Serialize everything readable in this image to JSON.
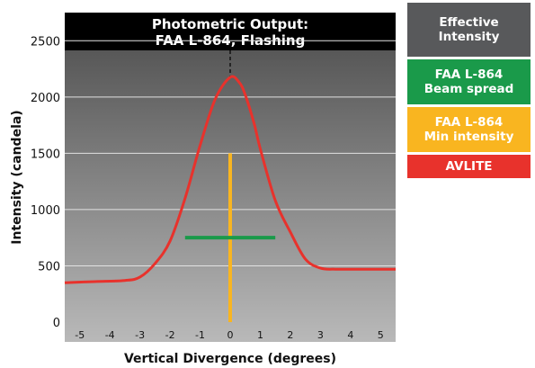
{
  "chart_data": {
    "type": "line",
    "title": "Photometric Output:\nFAA L-864, Flashing",
    "xlabel": "Vertical Divergence (degrees)",
    "ylabel": "Intensity (candela)",
    "xlim": [
      -5.5,
      5.5
    ],
    "ylim": [
      0,
      2750
    ],
    "x_ticks": [
      -5,
      -4,
      -3,
      -2,
      -1,
      0,
      1,
      2,
      3,
      4,
      5
    ],
    "y_ticks": [
      0,
      500,
      1000,
      1500,
      2000,
      2500
    ],
    "grid": true,
    "series": [
      {
        "name": "AVLITE",
        "color": "#e8322c",
        "x": [
          -5.5,
          -4.5,
          -3.5,
          -3.0,
          -2.5,
          -2.0,
          -1.5,
          -1.0,
          -0.5,
          0.0,
          0.3,
          0.5,
          0.8,
          1.0,
          1.5,
          2.0,
          2.5,
          3.0,
          3.5,
          4.5,
          5.5
        ],
        "y": [
          350,
          360,
          370,
          400,
          520,
          720,
          1100,
          1570,
          1980,
          2175,
          2130,
          2020,
          1760,
          1540,
          1080,
          800,
          560,
          480,
          470,
          470,
          470
        ]
      },
      {
        "name": "FAA L-864 Min intensity",
        "color": "#f9b520",
        "x": [
          0,
          0
        ],
        "y": [
          0,
          1500
        ]
      },
      {
        "name": "FAA L-864 Beam spread",
        "color": "#1a9a4a",
        "x": [
          -1.5,
          1.5
        ],
        "y": [
          750,
          750
        ]
      }
    ],
    "reference_lines": [
      {
        "name": "Effective Intensity",
        "x": 0,
        "style": "dashed"
      }
    ]
  },
  "legend": [
    {
      "label": "Effective\nIntensity",
      "color": "#58595b"
    },
    {
      "label": "FAA L-864\nBeam spread",
      "color": "#1a9a4a"
    },
    {
      "label": "FAA L-864\nMin intensity",
      "color": "#f9b520"
    },
    {
      "label": "AVLITE",
      "color": "#e8322c"
    }
  ]
}
